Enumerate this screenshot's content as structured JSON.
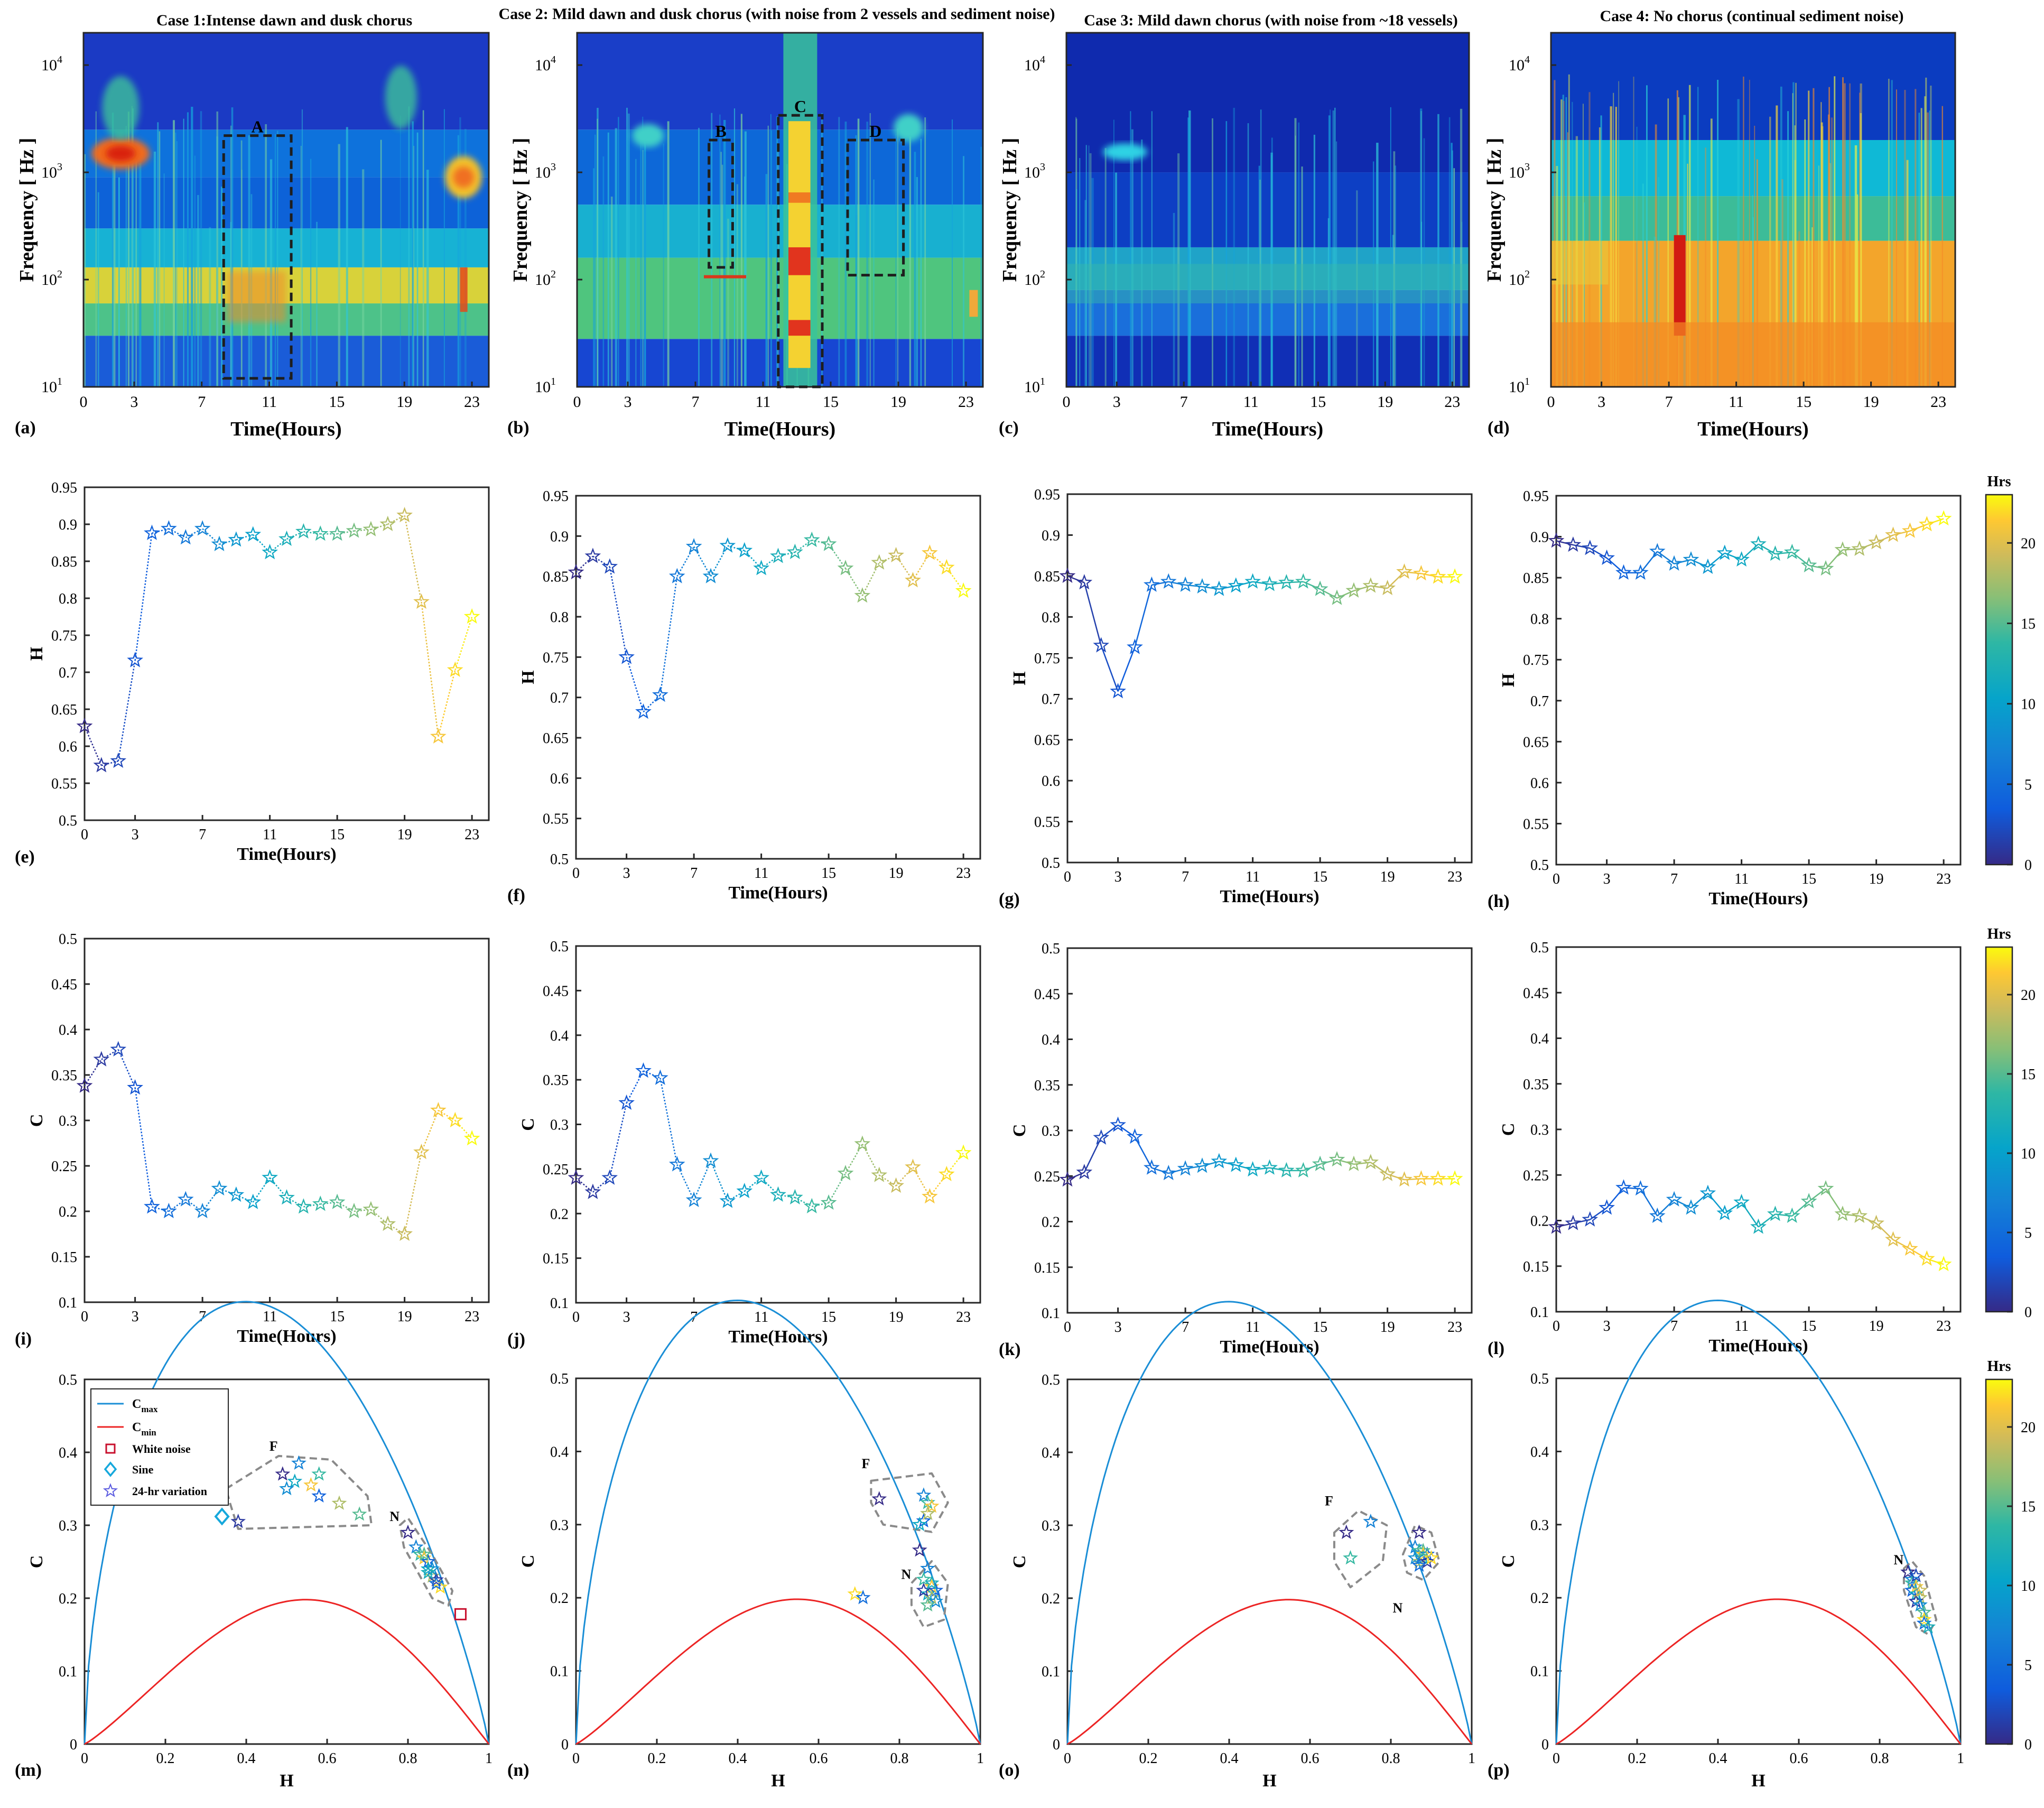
{
  "figure": "Spectrograms, entropy H, complexity C and CECP diagrams over 24 hours for four cases",
  "cases": [
    {
      "label": "Case 1:Intense dawn and dusk chorus",
      "spec_panel": "(a)",
      "boxes": [
        "A"
      ],
      "h_panel": "(e)",
      "c_panel": "(i)",
      "cecp_panel": "(m)"
    },
    {
      "label": "Case 2: Mild dawn and dusk chorus (with noise from 2 vessels and sediment noise)",
      "spec_panel": "(b)",
      "boxes": [
        "B",
        "C",
        "D"
      ],
      "h_panel": "(f)",
      "c_panel": "(j)",
      "cecp_panel": "(n)"
    },
    {
      "label": "Case 3: Mild dawn chorus (with noise from ~18 vessels)",
      "spec_panel": "(c)",
      "boxes": [],
      "h_panel": "(g)",
      "c_panel": "(k)",
      "cecp_panel": "(o)"
    },
    {
      "label": "Case 4: No chorus (continual sediment noise)",
      "spec_panel": "(d)",
      "boxes": [],
      "h_panel": "(h)",
      "c_panel": "(l)",
      "cecp_panel": "(p)"
    }
  ],
  "axis_labels": {
    "time": "Time(Hours)",
    "frequency": "Frequency [ Hz ]",
    "H": "H",
    "C": "C"
  },
  "colorbar": {
    "title": "Hrs",
    "ticks": [
      "0",
      "5",
      "10",
      "15",
      "20"
    ]
  },
  "legend": {
    "cmax": "C",
    "cmax_sub": "max",
    "cmin": "C",
    "cmin_sub": "min",
    "white_noise": "White noise",
    "sine": "Sine",
    "variation": "24-hr variation"
  },
  "cluster_labels": {
    "F": "F",
    "N": "N"
  },
  "chart_data": [
    {
      "type": "heatmap",
      "panel": "(a)",
      "title": "Case 1:Intense dawn and dusk chorus",
      "xlabel": "Time(Hours)",
      "ylabel": "Frequency [ Hz ]",
      "xlim": [
        0,
        24
      ],
      "ylim": [
        10,
        20000
      ],
      "yscale": "log",
      "xticks": [
        "0",
        "3",
        "7",
        "11",
        "15",
        "19",
        "23"
      ],
      "yticks": [
        "10^1",
        "10^2",
        "10^3",
        "10^4"
      ],
      "annotations": [
        {
          "label": "A",
          "x": [
            8.3,
            12.3
          ],
          "f": [
            12,
            2200
          ]
        }
      ]
    },
    {
      "type": "heatmap",
      "panel": "(b)",
      "title": "Case 2: Mild dawn and dusk chorus (with noise from 2 vessels and sediment noise)",
      "xlabel": "Time(Hours)",
      "ylabel": "Frequency [ Hz ]",
      "xlim": [
        0,
        24
      ],
      "ylim": [
        10,
        20000
      ],
      "yscale": "log",
      "xticks": [
        "0",
        "3",
        "7",
        "11",
        "15",
        "19",
        "23"
      ],
      "yticks": [
        "10^1",
        "10^2",
        "10^3",
        "10^4"
      ],
      "annotations": [
        {
          "label": "B",
          "x": [
            7.8,
            9.2
          ],
          "f": [
            130,
            2000
          ]
        },
        {
          "label": "C",
          "x": [
            11.9,
            14.5
          ],
          "f": [
            10,
            3400
          ]
        },
        {
          "label": "D",
          "x": [
            16.0,
            19.3
          ],
          "f": [
            110,
            2000
          ]
        }
      ]
    },
    {
      "type": "heatmap",
      "panel": "(c)",
      "title": "Case 3: Mild dawn chorus (with noise from ~18 vessels)",
      "xlabel": "Time(Hours)",
      "ylabel": "Frequency [ Hz ]",
      "xlim": [
        0,
        24
      ],
      "ylim": [
        10,
        20000
      ],
      "yscale": "log",
      "xticks": [
        "0",
        "3",
        "7",
        "11",
        "15",
        "19",
        "23"
      ],
      "yticks": [
        "10^1",
        "10^2",
        "10^3",
        "10^4"
      ],
      "annotations": []
    },
    {
      "type": "heatmap",
      "panel": "(d)",
      "title": "Case 4: No chorus (continual sediment noise)",
      "xlabel": "Time(Hours)",
      "ylabel": "Frequency [ Hz ]",
      "xlim": [
        0,
        24
      ],
      "ylim": [
        10,
        20000
      ],
      "yscale": "log",
      "xticks": [
        "0",
        "3",
        "7",
        "11",
        "15",
        "19",
        "23"
      ],
      "yticks": [
        "10^1",
        "10^2",
        "10^3",
        "10^4"
      ],
      "annotations": []
    },
    {
      "type": "line",
      "panel": "(e)",
      "xlabel": "Time(Hours)",
      "ylabel": "H",
      "xlim": [
        0,
        24
      ],
      "ylim": [
        0.5,
        0.95
      ],
      "x": [
        0,
        1,
        2,
        3,
        4,
        5,
        6,
        7,
        8,
        9,
        10,
        11,
        12,
        13,
        14,
        15,
        16,
        17,
        18,
        19,
        20,
        21,
        22,
        23
      ],
      "values": [
        0.627,
        0.574,
        0.58,
        0.716,
        0.888,
        0.894,
        0.882,
        0.894,
        0.873,
        0.879,
        0.886,
        0.862,
        0.88,
        0.89,
        0.887,
        0.887,
        0.891,
        0.893,
        0.9,
        0.912,
        0.795,
        0.613,
        0.703,
        0.775
      ]
    },
    {
      "type": "line",
      "panel": "(f)",
      "xlabel": "Time(Hours)",
      "ylabel": "H",
      "xlim": [
        0,
        24
      ],
      "ylim": [
        0.5,
        0.95
      ],
      "x": [
        0,
        1,
        2,
        3,
        4,
        5,
        6,
        7,
        8,
        9,
        10,
        11,
        12,
        13,
        14,
        15,
        16,
        17,
        18,
        19,
        20,
        21,
        22,
        23
      ],
      "values": [
        0.855,
        0.875,
        0.862,
        0.75,
        0.682,
        0.703,
        0.85,
        0.887,
        0.85,
        0.888,
        0.882,
        0.86,
        0.875,
        0.88,
        0.895,
        0.89,
        0.86,
        0.826,
        0.867,
        0.876,
        0.845,
        0.879,
        0.861,
        0.832
      ]
    },
    {
      "type": "line",
      "panel": "(g)",
      "xlabel": "Time(Hours)",
      "ylabel": "H",
      "xlim": [
        0,
        24
      ],
      "ylim": [
        0.5,
        0.95
      ],
      "x": [
        0,
        1,
        2,
        3,
        4,
        5,
        6,
        7,
        8,
        9,
        10,
        11,
        12,
        13,
        14,
        15,
        16,
        17,
        18,
        19,
        20,
        21,
        22,
        23
      ],
      "values": [
        0.85,
        0.842,
        0.765,
        0.709,
        0.763,
        0.839,
        0.843,
        0.839,
        0.837,
        0.834,
        0.838,
        0.843,
        0.84,
        0.842,
        0.843,
        0.834,
        0.823,
        0.832,
        0.838,
        0.835,
        0.855,
        0.853,
        0.849,
        0.849
      ]
    },
    {
      "type": "line",
      "panel": "(h)",
      "xlabel": "Time(Hours)",
      "ylabel": "H",
      "xlim": [
        0,
        24
      ],
      "ylim": [
        0.5,
        0.95
      ],
      "x": [
        0,
        1,
        2,
        3,
        4,
        5,
        6,
        7,
        8,
        9,
        10,
        11,
        12,
        13,
        14,
        15,
        16,
        17,
        18,
        19,
        20,
        21,
        22,
        23
      ],
      "values": [
        0.895,
        0.89,
        0.886,
        0.874,
        0.856,
        0.856,
        0.882,
        0.867,
        0.872,
        0.863,
        0.88,
        0.872,
        0.891,
        0.879,
        0.881,
        0.865,
        0.861,
        0.884,
        0.885,
        0.893,
        0.902,
        0.907,
        0.915,
        0.922
      ]
    },
    {
      "type": "line",
      "panel": "(i)",
      "xlabel": "Time(Hours)",
      "ylabel": "C",
      "xlim": [
        0,
        24
      ],
      "ylim": [
        0.1,
        0.5
      ],
      "x": [
        0,
        1,
        2,
        3,
        4,
        5,
        6,
        7,
        8,
        9,
        10,
        11,
        12,
        13,
        14,
        15,
        16,
        17,
        18,
        19,
        20,
        21,
        22,
        23
      ],
      "values": [
        0.338,
        0.367,
        0.378,
        0.336,
        0.205,
        0.2,
        0.213,
        0.2,
        0.225,
        0.218,
        0.21,
        0.237,
        0.215,
        0.205,
        0.208,
        0.21,
        0.2,
        0.202,
        0.186,
        0.175,
        0.265,
        0.311,
        0.3,
        0.28
      ]
    },
    {
      "type": "line",
      "panel": "(j)",
      "xlabel": "Time(Hours)",
      "ylabel": "C",
      "xlim": [
        0,
        24
      ],
      "ylim": [
        0.1,
        0.5
      ],
      "x": [
        0,
        1,
        2,
        3,
        4,
        5,
        6,
        7,
        8,
        9,
        10,
        11,
        12,
        13,
        14,
        15,
        16,
        17,
        18,
        19,
        20,
        21,
        22,
        23
      ],
      "values": [
        0.24,
        0.224,
        0.24,
        0.324,
        0.36,
        0.352,
        0.255,
        0.215,
        0.259,
        0.214,
        0.225,
        0.24,
        0.221,
        0.218,
        0.208,
        0.212,
        0.245,
        0.278,
        0.243,
        0.231,
        0.252,
        0.219,
        0.244,
        0.268
      ]
    },
    {
      "type": "line",
      "panel": "(k)",
      "xlabel": "Time(Hours)",
      "ylabel": "C",
      "xlim": [
        0,
        24
      ],
      "ylim": [
        0.1,
        0.5
      ],
      "x": [
        0,
        1,
        2,
        3,
        4,
        5,
        6,
        7,
        8,
        9,
        10,
        11,
        12,
        13,
        14,
        15,
        16,
        17,
        18,
        19,
        20,
        21,
        22,
        23
      ],
      "values": [
        0.246,
        0.254,
        0.292,
        0.306,
        0.293,
        0.259,
        0.253,
        0.258,
        0.261,
        0.266,
        0.262,
        0.257,
        0.259,
        0.256,
        0.256,
        0.263,
        0.268,
        0.263,
        0.265,
        0.252,
        0.246,
        0.247,
        0.247,
        0.247
      ]
    },
    {
      "type": "line",
      "panel": "(l)",
      "xlabel": "Time(Hours)",
      "ylabel": "C",
      "xlim": [
        0,
        24
      ],
      "ylim": [
        0.1,
        0.5
      ],
      "x": [
        0,
        1,
        2,
        3,
        4,
        5,
        6,
        7,
        8,
        9,
        10,
        11,
        12,
        13,
        14,
        15,
        16,
        17,
        18,
        19,
        20,
        21,
        22,
        23
      ],
      "values": [
        0.193,
        0.197,
        0.201,
        0.214,
        0.236,
        0.235,
        0.205,
        0.223,
        0.214,
        0.23,
        0.208,
        0.22,
        0.193,
        0.207,
        0.205,
        0.221,
        0.235,
        0.207,
        0.205,
        0.197,
        0.179,
        0.169,
        0.158,
        0.152
      ]
    },
    {
      "type": "scatter",
      "panel": "(m)",
      "xlabel": "H",
      "ylabel": "C",
      "xlim": [
        0,
        1
      ],
      "ylim": [
        0,
        0.5
      ],
      "curves": [
        "Cmax",
        "Cmin"
      ],
      "reference_points": {
        "white_noise": [
          0.93,
          0.18
        ],
        "sine": [
          0.34,
          0.31
        ]
      },
      "clusters": [
        "F",
        "N"
      ],
      "source": "(e),(i)"
    },
    {
      "type": "scatter",
      "panel": "(n)",
      "xlabel": "H",
      "ylabel": "C",
      "xlim": [
        0,
        1
      ],
      "ylim": [
        0,
        0.5
      ],
      "curves": [
        "Cmax",
        "Cmin"
      ],
      "clusters": [
        "F",
        "N"
      ],
      "source": "(f),(j)"
    },
    {
      "type": "scatter",
      "panel": "(o)",
      "xlabel": "H",
      "ylabel": "C",
      "xlim": [
        0,
        1
      ],
      "ylim": [
        0,
        0.5
      ],
      "curves": [
        "Cmax",
        "Cmin"
      ],
      "clusters": [
        "F",
        "N"
      ],
      "source": "(g),(k)"
    },
    {
      "type": "scatter",
      "panel": "(p)",
      "xlabel": "H",
      "ylabel": "C",
      "xlim": [
        0,
        1
      ],
      "ylim": [
        0,
        0.5
      ],
      "curves": [
        "Cmax",
        "Cmin"
      ],
      "clusters": [
        "N"
      ],
      "source": "(h),(l)"
    }
  ]
}
